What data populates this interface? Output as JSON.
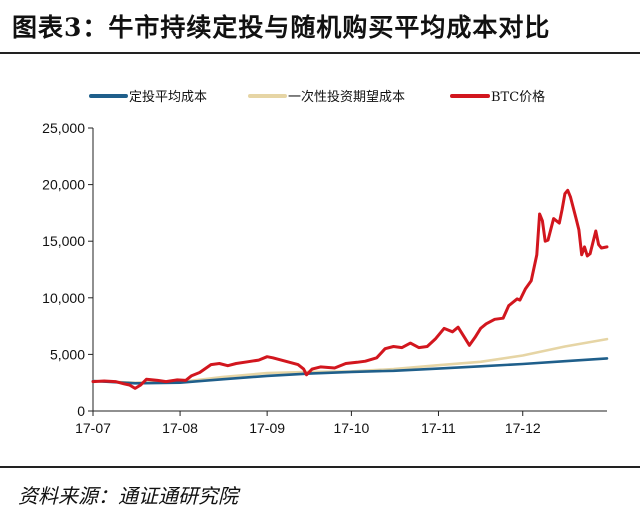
{
  "title": "图表3：牛市持续定投与随机购买平均成本对比",
  "source": "资料来源：通证通研究院",
  "chart_data": {
    "type": "line",
    "title": "图表3：牛市持续定投与随机购买平均成本对比",
    "legend_position": "top",
    "grid": false,
    "ylim": [
      0,
      25000
    ],
    "y_ticks": [
      0,
      5000,
      10000,
      15000,
      20000,
      25000
    ],
    "y_tick_labels": [
      "0",
      "5,000",
      "10,000",
      "15,000",
      "20,000",
      "25,000"
    ],
    "x_ticks": [
      "2017-07-01",
      "2017-08-01",
      "2017-09-01",
      "2017-10-01",
      "2017-11-01",
      "2017-12-01"
    ],
    "x_tick_labels": [
      "17-07",
      "17-08",
      "17-09",
      "17-10",
      "17-11",
      "17-12"
    ],
    "xlim": [
      "2017-07-01",
      "2017-12-31"
    ],
    "series": [
      {
        "name": "定投平均成本",
        "color": "#1f5f8b",
        "points": [
          [
            "2017-07-01",
            2650
          ],
          [
            "2017-07-16",
            2450
          ],
          [
            "2017-08-01",
            2500
          ],
          [
            "2017-08-16",
            2800
          ],
          [
            "2017-09-01",
            3100
          ],
          [
            "2017-09-16",
            3300
          ],
          [
            "2017-10-01",
            3450
          ],
          [
            "2017-10-16",
            3550
          ],
          [
            "2017-11-01",
            3750
          ],
          [
            "2017-11-16",
            3950
          ],
          [
            "2017-12-01",
            4150
          ],
          [
            "2017-12-16",
            4400
          ],
          [
            "2017-12-31",
            4650
          ]
        ]
      },
      {
        "name": "一次性投资期望成本",
        "color": "#e6d5a5",
        "points": [
          [
            "2017-07-01",
            2650
          ],
          [
            "2017-07-16",
            2500
          ],
          [
            "2017-08-01",
            2550
          ],
          [
            "2017-08-16",
            3000
          ],
          [
            "2017-09-01",
            3350
          ],
          [
            "2017-09-16",
            3450
          ],
          [
            "2017-10-01",
            3500
          ],
          [
            "2017-10-16",
            3700
          ],
          [
            "2017-11-01",
            4050
          ],
          [
            "2017-11-16",
            4350
          ],
          [
            "2017-12-01",
            4900
          ],
          [
            "2017-12-16",
            5700
          ],
          [
            "2017-12-31",
            6350
          ]
        ]
      },
      {
        "name": "BTC价格",
        "color": "#d2161e",
        "points": [
          [
            "2017-07-01",
            2600
          ],
          [
            "2017-07-05",
            2650
          ],
          [
            "2017-07-09",
            2600
          ],
          [
            "2017-07-12",
            2400
          ],
          [
            "2017-07-14",
            2300
          ],
          [
            "2017-07-16",
            2000
          ],
          [
            "2017-07-18",
            2300
          ],
          [
            "2017-07-20",
            2800
          ],
          [
            "2017-07-24",
            2700
          ],
          [
            "2017-07-27",
            2600
          ],
          [
            "2017-07-31",
            2750
          ],
          [
            "2017-08-03",
            2700
          ],
          [
            "2017-08-05",
            3100
          ],
          [
            "2017-08-08",
            3400
          ],
          [
            "2017-08-12",
            4100
          ],
          [
            "2017-08-15",
            4200
          ],
          [
            "2017-08-18",
            4000
          ],
          [
            "2017-08-21",
            4200
          ],
          [
            "2017-08-25",
            4350
          ],
          [
            "2017-08-29",
            4500
          ],
          [
            "2017-09-01",
            4800
          ],
          [
            "2017-09-03",
            4700
          ],
          [
            "2017-09-06",
            4500
          ],
          [
            "2017-09-09",
            4300
          ],
          [
            "2017-09-12",
            4100
          ],
          [
            "2017-09-14",
            3700
          ],
          [
            "2017-09-15",
            3200
          ],
          [
            "2017-09-17",
            3700
          ],
          [
            "2017-09-20",
            3900
          ],
          [
            "2017-09-25",
            3800
          ],
          [
            "2017-09-29",
            4200
          ],
          [
            "2017-10-03",
            4300
          ],
          [
            "2017-10-06",
            4400
          ],
          [
            "2017-10-10",
            4700
          ],
          [
            "2017-10-13",
            5500
          ],
          [
            "2017-10-16",
            5700
          ],
          [
            "2017-10-19",
            5600
          ],
          [
            "2017-10-22",
            6000
          ],
          [
            "2017-10-25",
            5600
          ],
          [
            "2017-10-28",
            5700
          ],
          [
            "2017-10-31",
            6400
          ],
          [
            "2017-11-03",
            7300
          ],
          [
            "2017-11-06",
            7000
          ],
          [
            "2017-11-08",
            7400
          ],
          [
            "2017-11-10",
            6600
          ],
          [
            "2017-11-12",
            5800
          ],
          [
            "2017-11-14",
            6500
          ],
          [
            "2017-11-16",
            7300
          ],
          [
            "2017-11-18",
            7700
          ],
          [
            "2017-11-21",
            8100
          ],
          [
            "2017-11-24",
            8200
          ],
          [
            "2017-11-26",
            9300
          ],
          [
            "2017-11-29",
            9900
          ],
          [
            "2017-11-30",
            9800
          ],
          [
            "2017-12-02",
            10800
          ],
          [
            "2017-12-04",
            11500
          ],
          [
            "2017-12-06",
            13800
          ],
          [
            "2017-12-07",
            17400
          ],
          [
            "2017-12-08",
            16800
          ],
          [
            "2017-12-09",
            15000
          ],
          [
            "2017-12-10",
            15100
          ],
          [
            "2017-12-12",
            17000
          ],
          [
            "2017-12-13",
            16800
          ],
          [
            "2017-12-14",
            16600
          ],
          [
            "2017-12-15",
            17800
          ],
          [
            "2017-12-16",
            19200
          ],
          [
            "2017-12-17",
            19500
          ],
          [
            "2017-12-18",
            18900
          ],
          [
            "2017-12-20",
            17000
          ],
          [
            "2017-12-21",
            16000
          ],
          [
            "2017-12-22",
            13800
          ],
          [
            "2017-12-23",
            14500
          ],
          [
            "2017-12-24",
            13700
          ],
          [
            "2017-12-25",
            13900
          ],
          [
            "2017-12-27",
            15900
          ],
          [
            "2017-12-28",
            14700
          ],
          [
            "2017-12-29",
            14400
          ],
          [
            "2017-12-31",
            14500
          ]
        ]
      }
    ]
  }
}
